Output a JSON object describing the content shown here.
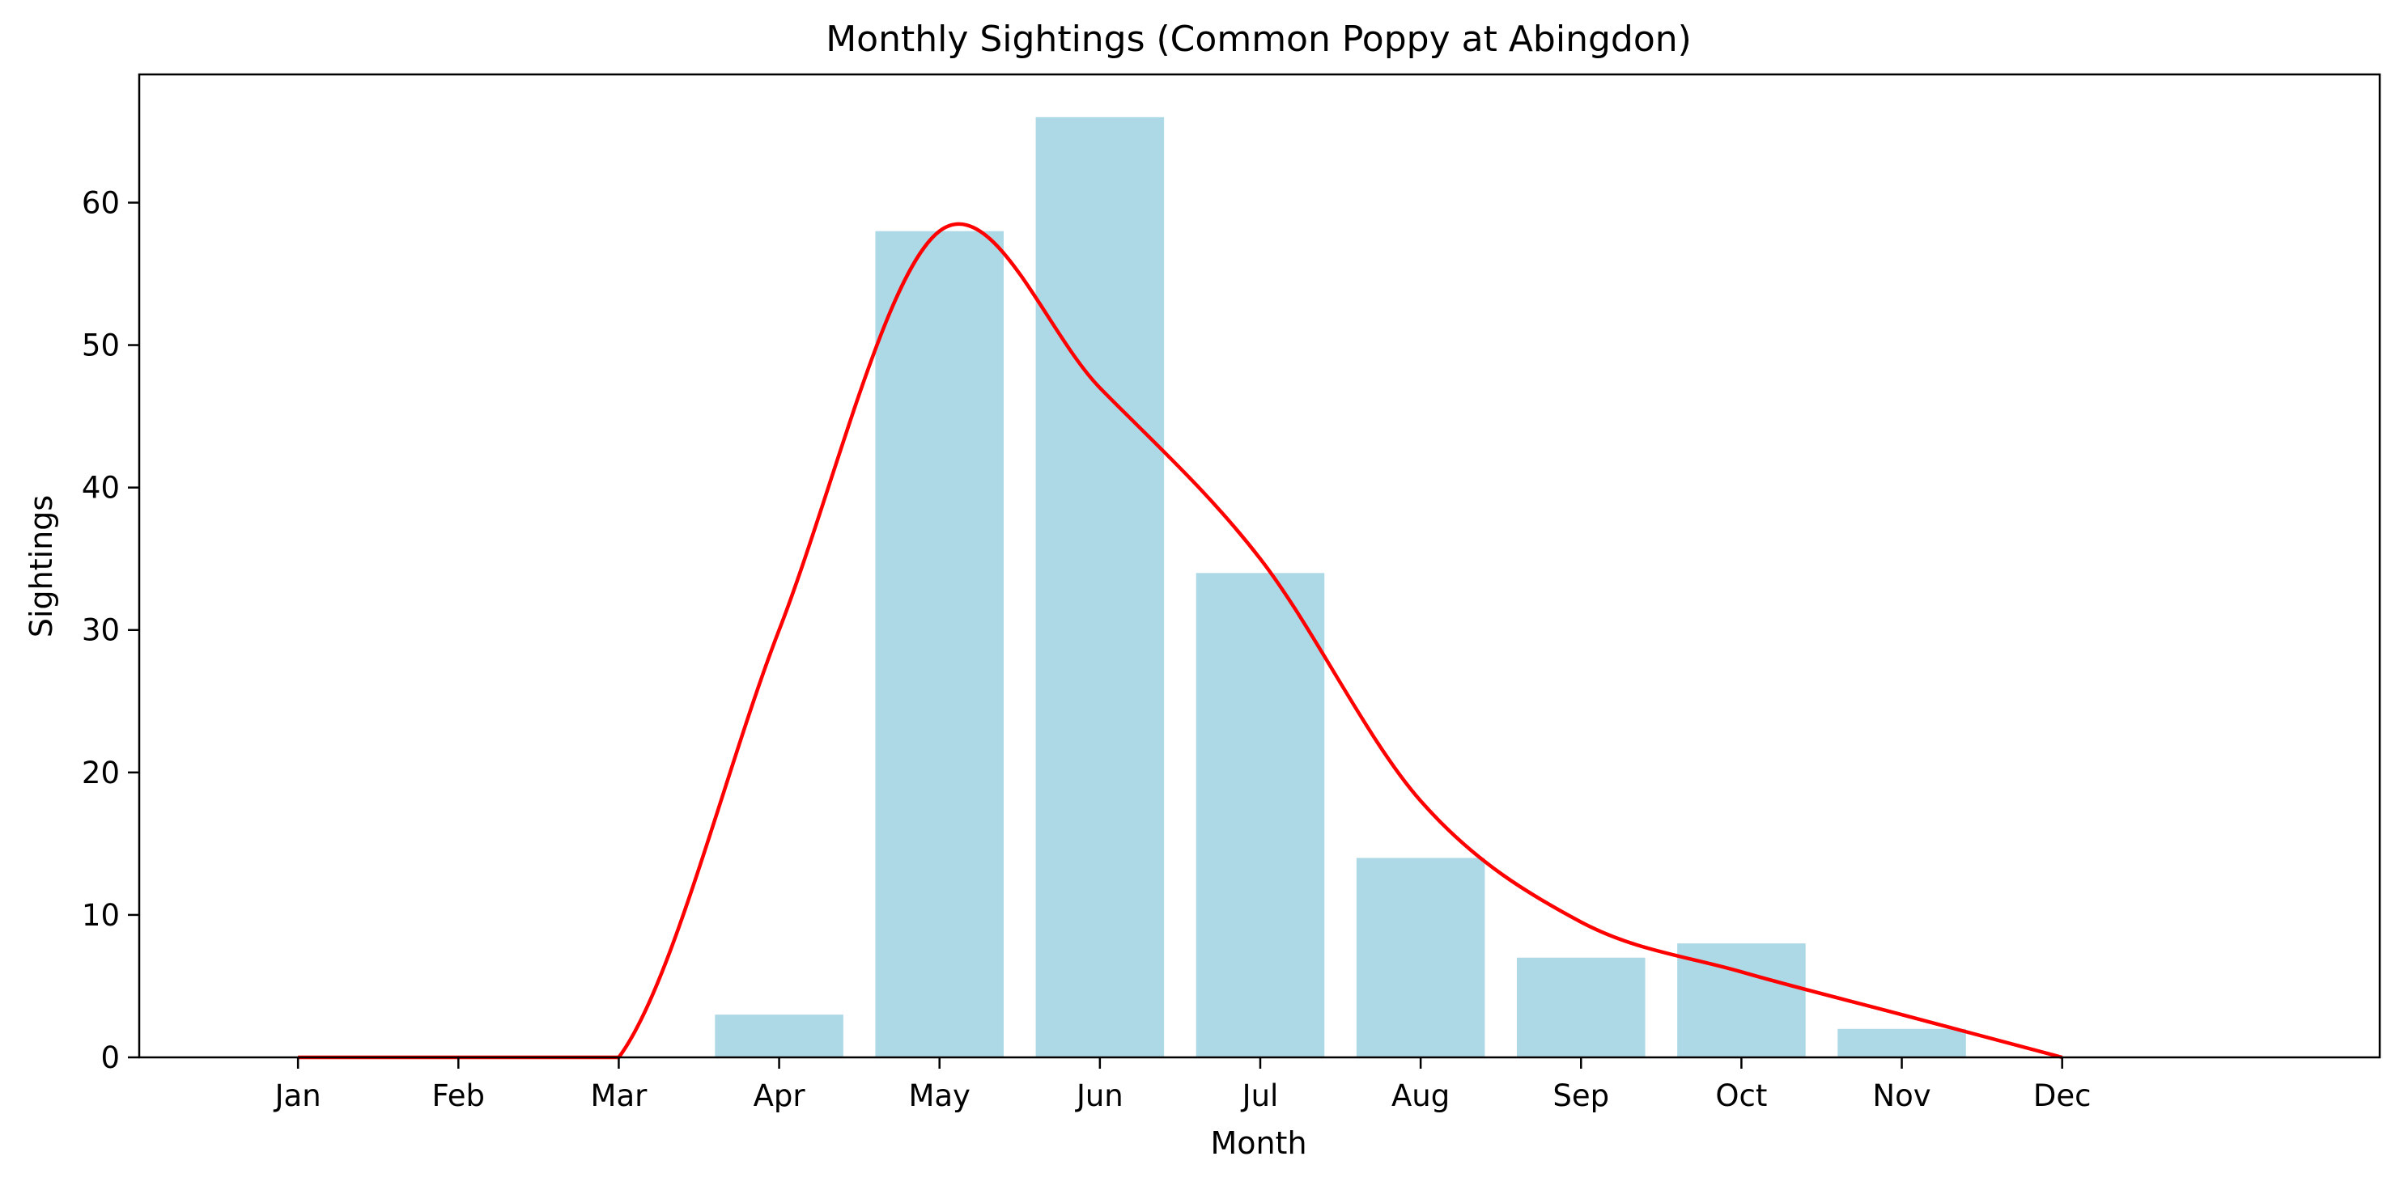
{
  "chart_data": {
    "type": "bar",
    "title": "Monthly Sightings (Common Poppy at Abingdon)",
    "xlabel": "Month",
    "ylabel": "Sightings",
    "categories": [
      "Jan",
      "Feb",
      "Mar",
      "Apr",
      "May",
      "Jun",
      "Jul",
      "Aug",
      "Sep",
      "Oct",
      "Nov",
      "Dec"
    ],
    "values": [
      0,
      0,
      0,
      3,
      58,
      66,
      34,
      14,
      7,
      8,
      2,
      0
    ],
    "trend_line": [
      0,
      0,
      0,
      30,
      58,
      47,
      35,
      18,
      9.5,
      6,
      3,
      0
    ],
    "ylim": [
      0,
      69
    ],
    "yticks": [
      0,
      10,
      20,
      30,
      40,
      50,
      60
    ],
    "grid": false,
    "legend": "none",
    "colors": {
      "bar": "#add8e6",
      "line": "#ff0000",
      "axis": "#000000"
    }
  }
}
